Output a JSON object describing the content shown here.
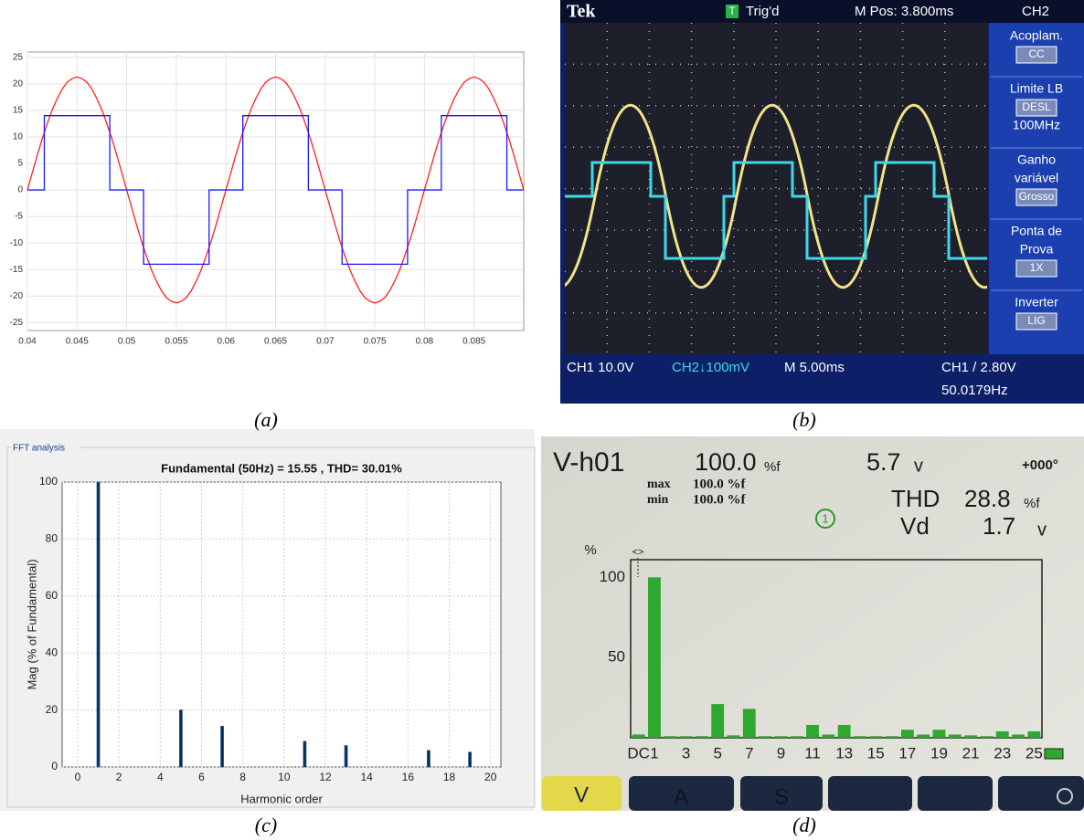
{
  "captions": [
    "(a)",
    "(b)",
    "(c)",
    "(d)"
  ],
  "chart_data": [
    {
      "type": "line",
      "xlim": [
        0.04,
        0.09
      ],
      "ylim": [
        -26.5,
        26
      ],
      "xticks": [
        0.04,
        0.045,
        0.05,
        0.055,
        0.06,
        0.065,
        0.07,
        0.075,
        0.08,
        0.085
      ],
      "yticks": [
        -25,
        -20,
        -15,
        -10,
        -5,
        0,
        5,
        10,
        15,
        20,
        25
      ],
      "grid": true,
      "series": [
        {
          "color": "#ff2020",
          "x": [
            0.04,
            0.0405,
            0.041,
            0.0415,
            0.042,
            0.0425,
            0.043,
            0.0435,
            0.044,
            0.0445,
            0.045,
            0.0455,
            0.046,
            0.0465,
            0.047,
            0.0475,
            0.048,
            0.0485,
            0.049,
            0.0495,
            0.05,
            0.0505,
            0.051,
            0.0515,
            0.052,
            0.0525,
            0.053,
            0.0535,
            0.054,
            0.0545,
            0.055,
            0.0555,
            0.056,
            0.0565,
            0.057,
            0.0575,
            0.058,
            0.0585,
            0.059,
            0.0595,
            0.06,
            0.0605,
            0.061,
            0.0615,
            0.062,
            0.0625,
            0.063,
            0.0635,
            0.064,
            0.0645,
            0.065,
            0.0655,
            0.066,
            0.0665,
            0.067,
            0.0675,
            0.068,
            0.0685,
            0.069,
            0.0695,
            0.07,
            0.0705,
            0.071,
            0.0715,
            0.072,
            0.0725,
            0.073,
            0.0735,
            0.074,
            0.0745,
            0.075,
            0.0755,
            0.076,
            0.0765,
            0.077,
            0.0775,
            0.078,
            0.0785,
            0.079,
            0.0795,
            0.08,
            0.0805,
            0.081,
            0.0815,
            0.082,
            0.0825,
            0.083,
            0.0835,
            0.084,
            0.0845,
            0.085,
            0.0855,
            0.086,
            0.0865,
            0.087,
            0.0875,
            0.088,
            0.0885,
            0.089,
            0.0895,
            0.09
          ],
          "values": [
            0,
            3.3,
            6.6,
            9.7,
            12.5,
            15.1,
            17.2,
            19,
            20.3,
            21,
            21.3,
            21,
            20.3,
            19,
            17.2,
            15.1,
            12.5,
            9.7,
            6.6,
            3.3,
            0,
            -3.3,
            -6.6,
            -9.7,
            -12.5,
            -15.1,
            -17.2,
            -19,
            -20.3,
            -21,
            -21.3,
            -21,
            -20.3,
            -19,
            -17.2,
            -15.1,
            -12.5,
            -9.7,
            -6.6,
            -3.3,
            0,
            3.3,
            6.6,
            9.7,
            12.5,
            15.1,
            17.2,
            19,
            20.3,
            21,
            21.3,
            21,
            20.3,
            19,
            17.2,
            15.1,
            12.5,
            9.7,
            6.6,
            3.3,
            0,
            -3.3,
            -6.6,
            -9.7,
            -12.5,
            -15.1,
            -17.2,
            -19,
            -20.3,
            -21,
            -21.3,
            -21,
            -20.3,
            -19,
            -17.2,
            -15.1,
            -12.5,
            -9.7,
            -6.6,
            -3.3,
            0,
            3.3,
            6.6,
            9.7,
            12.5,
            15.1,
            17.2,
            19,
            20.3,
            21,
            21.3,
            21,
            20.3,
            19,
            17.2,
            15.1,
            12.5,
            9.7,
            6.6,
            3.3,
            0
          ]
        },
        {
          "color": "#1a1aff",
          "x": [
            0.04,
            0.0417,
            0.0417,
            0.0483,
            0.0483,
            0.0517,
            0.0517,
            0.0583,
            0.0583,
            0.0617,
            0.0617,
            0.0683,
            0.0683,
            0.0717,
            0.0717,
            0.0783,
            0.0783,
            0.0817,
            0.0817,
            0.0883,
            0.0883,
            0.09
          ],
          "values": [
            0,
            0,
            14,
            14,
            0,
            0,
            -14,
            -14,
            0,
            0,
            14,
            14,
            0,
            0,
            -14,
            -14,
            0,
            0,
            14,
            14,
            0,
            0
          ]
        }
      ]
    },
    {
      "type": "bar",
      "panel_title": "FFT analysis",
      "title": "Fundamental (50Hz) = 15.55 , THD= 30.01%",
      "xlabel": "Harmonic order",
      "ylabel": "Mag (% of Fundamental)",
      "x": [
        1,
        5,
        7,
        11,
        13,
        17,
        19
      ],
      "values": [
        100,
        20,
        14.3,
        9,
        7.5,
        5.8,
        5.2
      ],
      "color": "#0b2a4a",
      "xlim": [
        -0.75,
        20.5
      ],
      "ylim": [
        0,
        100
      ],
      "xticks": [
        0,
        2,
        4,
        6,
        8,
        10,
        12,
        14,
        16,
        18,
        20
      ],
      "yticks": [
        0,
        20,
        40,
        60,
        80,
        100
      ],
      "grid": true
    },
    {
      "type": "bar",
      "ylabel": "%",
      "categories": [
        "DC",
        "1",
        null,
        "3",
        null,
        "5",
        null,
        "7",
        null,
        "9",
        null,
        "11",
        null,
        "13",
        null,
        "15",
        null,
        "17",
        null,
        "19",
        null,
        "21",
        null,
        "23",
        null,
        "25"
      ],
      "values": [
        2,
        100,
        1,
        1,
        1,
        21,
        1.5,
        18,
        1,
        1,
        1,
        8,
        2,
        8,
        1,
        1,
        1,
        5,
        2,
        5,
        2,
        1.5,
        1,
        4,
        2,
        4
      ],
      "color": "#2ea82e",
      "ylim": [
        0,
        111
      ],
      "yticks": [
        50,
        100
      ]
    }
  ],
  "scope": {
    "brand": "Tek",
    "trigger_marker": "T",
    "trigger": "Trig'd",
    "position": "M Pos: 3.800ms",
    "channel": "CH2",
    "menu": [
      {
        "lines": [
          "Acoplam."
        ],
        "value": "CC"
      },
      {
        "lines": [
          "Limite LB"
        ],
        "value": "DESL",
        "after": "100MHz"
      },
      {
        "lines": [
          "Ganho",
          "variável"
        ],
        "value": "Grosso"
      },
      {
        "lines": [
          "Ponta de",
          "Prova"
        ],
        "value": "1X"
      },
      {
        "lines": [
          "Inverter"
        ],
        "value": "LIG"
      }
    ],
    "ch1_scale": "CH1 10.0V",
    "ch2_scale": "CH2↓100mV",
    "timebase": "M 5.00ms",
    "trigger_setting": "CH1 / 2.80V",
    "frequency": "50.0179Hz"
  },
  "meter": {
    "harmonic": "V-h01",
    "percent": "100.0",
    "percent_unit": "%f",
    "volts": "5.7",
    "volts_unit": "v",
    "phase": "+000°",
    "max_label": "max",
    "max_value": "100.0 %f",
    "min_label": "min",
    "min_value": "100.0 %f",
    "channel": "1",
    "thd_label": "THD",
    "thd_value": "28.8",
    "thd_unit": "%f",
    "vd_label": "Vd",
    "vd_value": "1.7",
    "vd_unit": "v",
    "cursor": "<>",
    "buttons": [
      "V",
      "A",
      "S"
    ]
  }
}
